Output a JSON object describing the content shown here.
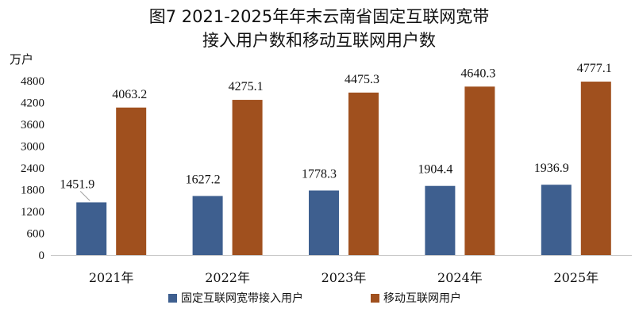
{
  "chart_data": {
    "type": "bar",
    "title_line1": "图7 2021-2025年年末云南省固定互联网宽带",
    "title_line2": "接入用户数和移动互联网用户数",
    "ylabel": "万户",
    "categories": [
      "2021年",
      "2022年",
      "2023年",
      "2024年",
      "2025年"
    ],
    "ylim": [
      0,
      4800
    ],
    "yticks": [
      0,
      600,
      1200,
      1800,
      2400,
      3000,
      3600,
      4200,
      4800
    ],
    "grid": false,
    "legend_position": "bottom",
    "series": [
      {
        "name": "固定互联网宽带接入用户",
        "color": "#3e5f8f",
        "values": [
          1451.9,
          1627.2,
          1778.3,
          1904.4,
          1936.9
        ],
        "labels": [
          "1451.9",
          "1627.2",
          "1778.3",
          "1904.4",
          "1936.9"
        ]
      },
      {
        "name": "移动互联网用户",
        "color": "#a0501e",
        "values": [
          4063.2,
          4275.1,
          4475.3,
          4640.3,
          4777.1
        ],
        "labels": [
          "4063.2",
          "4275.1",
          "4475.3",
          "4640.3",
          "4777.1"
        ]
      }
    ]
  }
}
